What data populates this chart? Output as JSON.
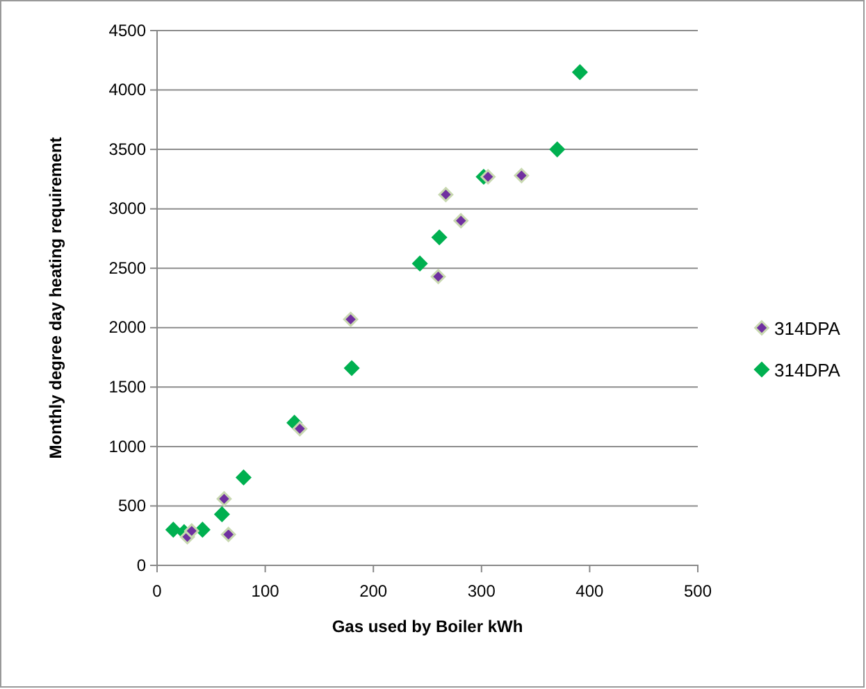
{
  "chart_data": {
    "type": "scatter",
    "xlabel": "Gas used by Boiler kWh",
    "ylabel": "Monthly degree day heating requirement",
    "xlim": [
      0,
      500
    ],
    "xticks": [
      0,
      100,
      200,
      300,
      400,
      500
    ],
    "ylim": [
      0,
      4500
    ],
    "yticks": [
      0,
      500,
      1000,
      1500,
      2000,
      2500,
      3000,
      3500,
      4000,
      4500
    ],
    "grid": "y",
    "legend": "right",
    "marker": "diamond",
    "series": [
      {
        "name": "314DPA",
        "color": "#7030a0",
        "x": [
          62,
          66,
          28,
          32,
          132,
          179,
          260,
          281,
          267,
          306,
          337
        ],
        "values": [
          560,
          260,
          240,
          290,
          1150,
          2070,
          2430,
          2900,
          3120,
          3270,
          3280
        ]
      },
      {
        "name": "314DPA",
        "color": "#00b050",
        "x": [
          15,
          25,
          42,
          60,
          80,
          127,
          180,
          243,
          261,
          302,
          370,
          391
        ],
        "values": [
          300,
          280,
          300,
          430,
          740,
          1200,
          1660,
          2540,
          2760,
          3270,
          3500,
          4150
        ]
      }
    ]
  }
}
